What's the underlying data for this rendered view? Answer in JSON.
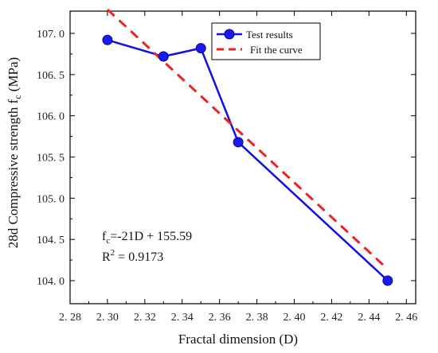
{
  "chart_data": {
    "type": "line",
    "xlabel": "Fractal dimension (D)",
    "ylabel": "28d Compressive strength  f",
    "ylabel_sub": "c",
    "ylabel_unit": " (MPa)",
    "xlim": [
      2.28,
      2.465
    ],
    "ylim": [
      103.72,
      107.27
    ],
    "x_ticks": [
      2.28,
      2.3,
      2.32,
      2.34,
      2.36,
      2.38,
      2.4,
      2.42,
      2.44,
      2.46
    ],
    "x_tick_labels": [
      "2. 28",
      "2. 30",
      "2. 32",
      "2. 34",
      "2. 36",
      "2. 38",
      "2. 40",
      "2. 42",
      "2. 44",
      "2. 46"
    ],
    "y_ticks": [
      104.0,
      104.5,
      105.0,
      105.5,
      106.0,
      106.5,
      107.0
    ],
    "y_tick_labels": [
      "104. 0",
      "104. 5",
      "105. 0",
      "105. 5",
      "106. 0",
      "106. 5",
      "107. 0"
    ],
    "grid": false,
    "legend_position": "top-right",
    "series": [
      {
        "name": "Test results",
        "style": "line-markers",
        "color": "#1010e0",
        "x": [
          2.3,
          2.33,
          2.35,
          2.37,
          2.45
        ],
        "y": [
          106.92,
          106.72,
          106.82,
          105.68,
          104.0
        ]
      },
      {
        "name": "Fit the curve",
        "style": "dashed",
        "color": "#ee2222",
        "x": [
          2.3,
          2.45
        ],
        "y": [
          107.29,
          104.14
        ]
      }
    ],
    "annotation": {
      "line1_f": "f",
      "line1_sub": "c",
      "line1_rest": "=-21D + 155.59",
      "line2_r": "R",
      "line2_sup": "2",
      "line2_rest": " = 0.9173"
    }
  }
}
